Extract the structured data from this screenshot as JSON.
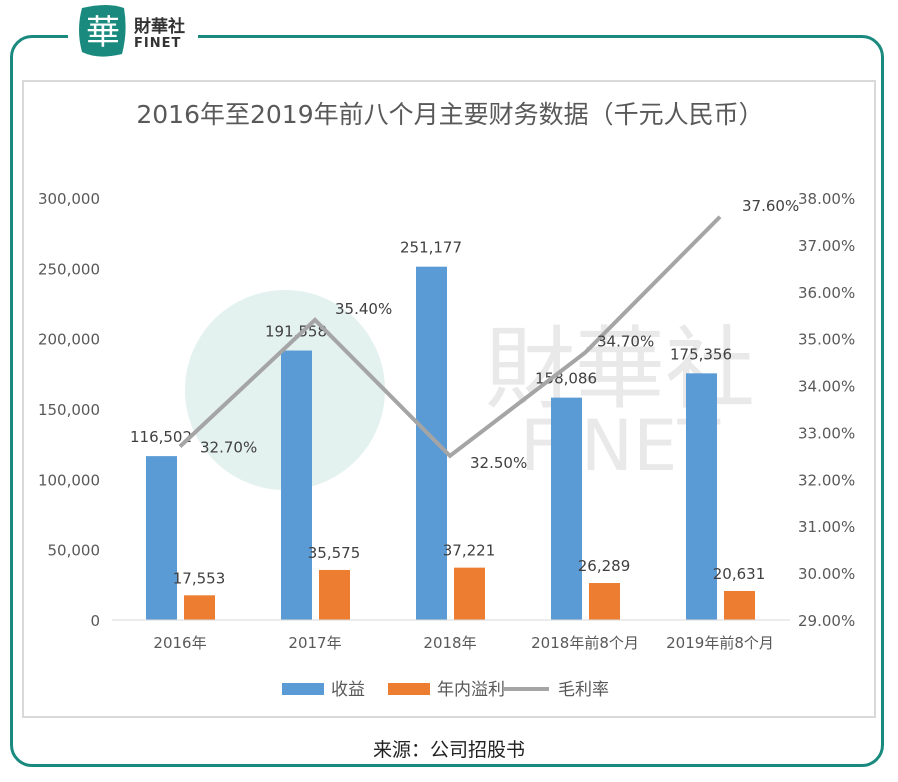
{
  "brand": {
    "logo_char": "華",
    "name_cn": "財華社",
    "name_en": "FINET",
    "color": "#1a8a7e"
  },
  "chart_data": {
    "type": "bar",
    "title": "2016年至2019年前八个月主要财务数据（千元人民币）",
    "categories": [
      "2016年",
      "2017年",
      "2018年",
      "2018年前8个月",
      "2019年前8个月"
    ],
    "series": [
      {
        "name": "收益",
        "type": "bar",
        "axis": "left",
        "color": "#5b9bd5",
        "values": [
          116502,
          191558,
          251177,
          158086,
          175356
        ],
        "labels": [
          "116,502",
          "191,558",
          "251,177",
          "158,086",
          "175,356"
        ]
      },
      {
        "name": "年内溢利",
        "type": "bar",
        "axis": "left",
        "color": "#ed7d31",
        "values": [
          17553,
          35575,
          37221,
          26289,
          20631
        ],
        "labels": [
          "17,553",
          "35,575",
          "37,221",
          "26,289",
          "20,631"
        ]
      },
      {
        "name": "毛利率",
        "type": "line",
        "axis": "right",
        "color": "#a5a5a5",
        "values": [
          32.7,
          35.4,
          32.5,
          34.7,
          37.6
        ],
        "labels": [
          "32.70%",
          "35.40%",
          "32.50%",
          "34.70%",
          "37.60%"
        ]
      }
    ],
    "ylim_left": [
      0,
      300000
    ],
    "yticks_left": [
      "0",
      "50,000",
      "100,000",
      "150,000",
      "200,000",
      "250,000",
      "300,000"
    ],
    "ylim_right": [
      29,
      38
    ],
    "yticks_right": [
      "29.00%",
      "30.00%",
      "31.00%",
      "32.00%",
      "33.00%",
      "34.00%",
      "35.00%",
      "36.00%",
      "37.00%",
      "38.00%"
    ],
    "grid": false,
    "legend": "bottom"
  },
  "source": "来源：公司招股书"
}
